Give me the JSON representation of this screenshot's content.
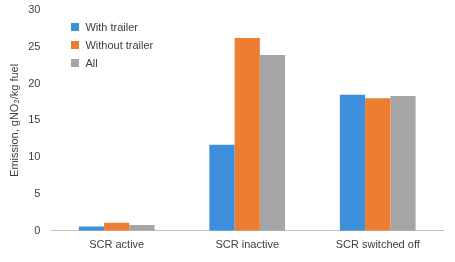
{
  "chart_data": {
    "type": "bar",
    "y_label": "Emission, gNO₂/kg fuel",
    "categories": [
      "SCR active",
      "SCR inactive",
      "SCR switched off"
    ],
    "series": [
      {
        "name": "With trailer",
        "color": "#3d8fdc",
        "values": [
          0.6,
          11.7,
          18.5
        ]
      },
      {
        "name": "Without trailer",
        "color": "#ed7d31",
        "values": [
          1.1,
          26.2,
          18.0
        ]
      },
      {
        "name": "All",
        "color": "#a5a5a5",
        "values": [
          0.8,
          23.9,
          18.3
        ]
      }
    ],
    "ylim": [
      0,
      30
    ],
    "yticks": [
      0,
      5,
      10,
      15,
      20,
      25,
      30
    ],
    "grid": false,
    "legend": "upper left"
  }
}
